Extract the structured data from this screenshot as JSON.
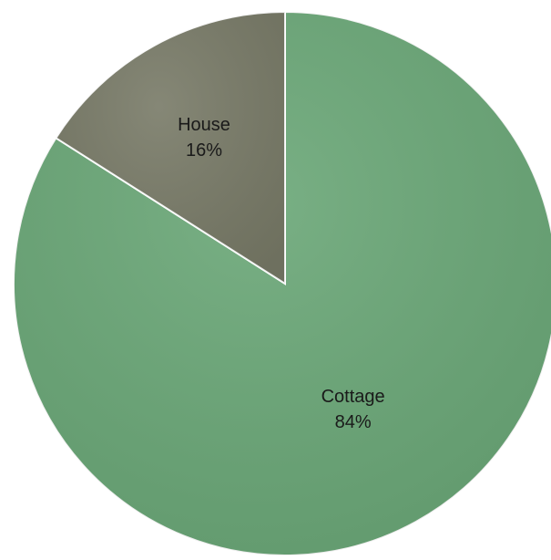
{
  "chart_data": {
    "type": "pie",
    "title": "",
    "start_angle_deg": 0,
    "direction": "clockwise",
    "slices": [
      {
        "label": "Cottage",
        "value": 84,
        "value_label": "84%",
        "color": "#6aa777"
      },
      {
        "label": "House",
        "value": 16,
        "value_label": "16%",
        "color": "#787a67"
      }
    ],
    "legend": "none"
  }
}
